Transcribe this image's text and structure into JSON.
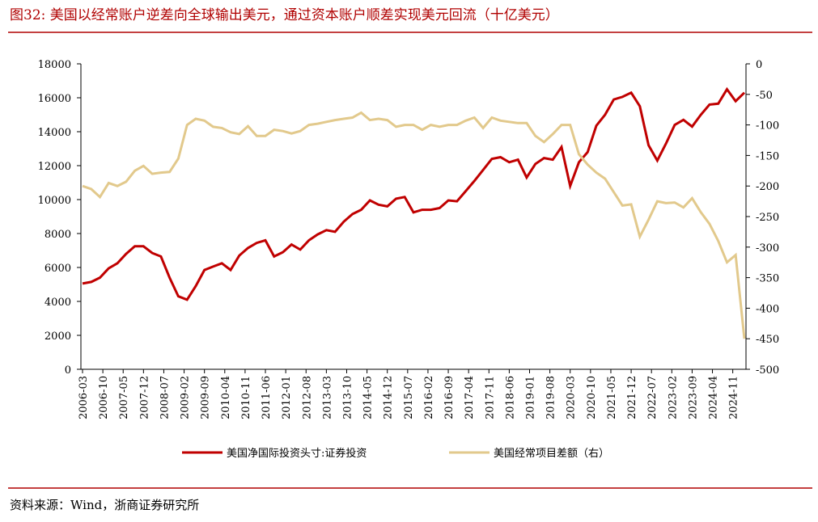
{
  "header": {
    "title": "图32:   美国以经常账户逆差向全球输出美元，通过资本账户顺差实现美元回流（十亿美元）"
  },
  "chart_data": {
    "type": "line",
    "x": [
      "2006-03",
      "2006-06",
      "2006-09",
      "2006-12",
      "2007-03",
      "2007-06",
      "2007-09",
      "2007-12",
      "2008-03",
      "2008-06",
      "2008-09",
      "2008-12",
      "2009-03",
      "2009-06",
      "2009-09",
      "2009-12",
      "2010-03",
      "2010-06",
      "2010-09",
      "2010-12",
      "2011-03",
      "2011-06",
      "2011-09",
      "2011-12",
      "2012-03",
      "2012-06",
      "2012-09",
      "2012-12",
      "2013-03",
      "2013-06",
      "2013-09",
      "2013-12",
      "2014-03",
      "2014-06",
      "2014-09",
      "2014-12",
      "2015-03",
      "2015-06",
      "2015-09",
      "2015-12",
      "2016-03",
      "2016-06",
      "2016-09",
      "2016-12",
      "2017-03",
      "2017-06",
      "2017-09",
      "2017-12",
      "2018-03",
      "2018-06",
      "2018-09",
      "2018-12",
      "2019-03",
      "2019-06",
      "2019-09",
      "2019-12",
      "2020-03",
      "2020-06",
      "2020-09",
      "2020-12",
      "2021-03",
      "2021-06",
      "2021-09",
      "2021-12",
      "2022-03",
      "2022-06",
      "2022-09",
      "2022-12",
      "2023-03",
      "2023-06",
      "2023-09",
      "2023-12",
      "2024-03",
      "2024-06",
      "2024-09",
      "2024-12",
      "2025-03"
    ],
    "xticks": [
      "2006-03",
      "2006-10",
      "2007-05",
      "2007-12",
      "2008-07",
      "2009-02",
      "2009-09",
      "2010-04",
      "2010-11",
      "2011-06",
      "2012-01",
      "2012-08",
      "2013-03",
      "2013-10",
      "2014-05",
      "2014-12",
      "2015-07",
      "2016-02",
      "2016-09",
      "2017-04",
      "2017-11",
      "2018-06",
      "2019-01",
      "2019-08",
      "2020-03",
      "2020-10",
      "2021-05",
      "2021-12",
      "2022-07",
      "2023-02",
      "2023-09",
      "2024-04",
      "2024-11"
    ],
    "series": [
      {
        "name": "美国净国际投资头寸:证券投资",
        "color": "#c00000",
        "values": [
          5050,
          5150,
          5400,
          5950,
          6250,
          6800,
          7250,
          7250,
          6850,
          6650,
          5400,
          4300,
          4100,
          4900,
          5850,
          6050,
          6250,
          5850,
          6700,
          7150,
          7450,
          7600,
          6650,
          6900,
          7350,
          7050,
          7600,
          7950,
          8200,
          8100,
          8700,
          9150,
          9400,
          9950,
          9700,
          9600,
          10050,
          10150,
          9250,
          9400,
          9400,
          9500,
          9950,
          9900,
          10500,
          11100,
          11750,
          12400,
          12500,
          12200,
          12350,
          11300,
          12100,
          12450,
          12350,
          13100,
          10800,
          12200,
          12800,
          14350,
          15000,
          15900,
          16050,
          16300,
          15500,
          13200,
          12300,
          13300,
          14400,
          14700,
          14300,
          15000,
          15600,
          15650,
          16500,
          15800,
          16300
        ]
      },
      {
        "name": "美国经常项目差额（右）",
        "color": "#e2c98c",
        "axis": "y2",
        "values": [
          -200,
          -205,
          -218,
          -195,
          -200,
          -193,
          -175,
          -167,
          -180,
          -178,
          -177,
          -155,
          -100,
          -90,
          -93,
          -103,
          -105,
          -112,
          -115,
          -102,
          -118,
          -118,
          -108,
          -110,
          -114,
          -110,
          -100,
          -98,
          -95,
          -92,
          -90,
          -88,
          -80,
          -92,
          -90,
          -92,
          -103,
          -100,
          -100,
          -108,
          -100,
          -103,
          -100,
          -100,
          -93,
          -88,
          -105,
          -88,
          -93,
          -95,
          -97,
          -97,
          -118,
          -128,
          -115,
          -100,
          -100,
          -148,
          -165,
          -178,
          -188,
          -210,
          -232,
          -230,
          -283,
          -255,
          -225,
          -228,
          -227,
          -235,
          -220,
          -243,
          -262,
          -290,
          -325,
          -313,
          -450
        ]
      }
    ],
    "ylim": [
      0,
      18000
    ],
    "yticks": [
      0,
      2000,
      4000,
      6000,
      8000,
      10000,
      12000,
      14000,
      16000,
      18000
    ],
    "y2lim": [
      -500,
      0
    ],
    "y2ticks": [
      -500,
      -450,
      -400,
      -350,
      -300,
      -250,
      -200,
      -150,
      -100,
      -50,
      0
    ]
  },
  "footer": {
    "source": "资料来源：Wind，浙商证券研究所"
  }
}
